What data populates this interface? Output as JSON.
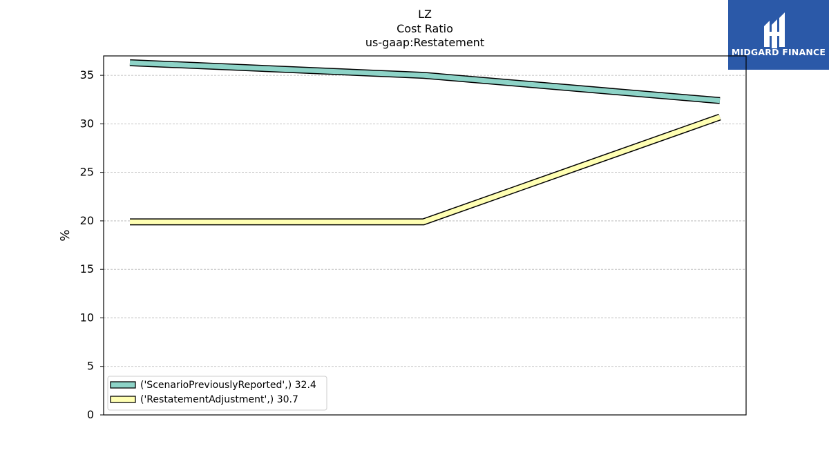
{
  "title": {
    "line1": "LZ",
    "line2": "Cost Ratio",
    "line3": "us-gaap:Restatement"
  },
  "logo": {
    "text": "MIDGARD FINANCE",
    "background_color": "#2b59a8"
  },
  "chart_data": {
    "type": "line",
    "ylabel": "%",
    "ylim": [
      0,
      37
    ],
    "yticks": [
      0,
      5,
      10,
      15,
      20,
      25,
      30,
      35
    ],
    "grid": true,
    "legend_placement": "lower-left",
    "x": [
      0,
      1,
      2
    ],
    "series": [
      {
        "name": "('ScenarioPreviouslyReported',) 32.4",
        "values": [
          36.3,
          35.0,
          32.4
        ],
        "color": "#8dd3c7"
      },
      {
        "name": "('RestatementAdjustment',) 30.7",
        "values": [
          19.9,
          19.9,
          30.7
        ],
        "color": "#ffffb3"
      }
    ]
  }
}
